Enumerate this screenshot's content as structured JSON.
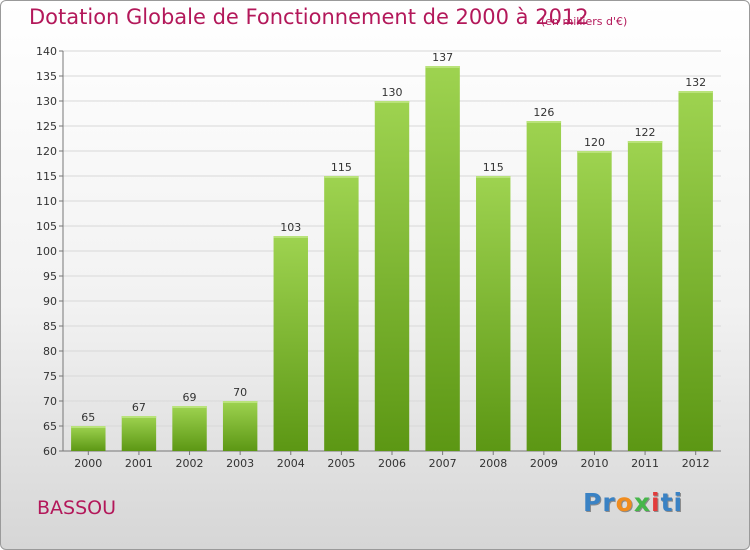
{
  "chart_data": {
    "type": "bar",
    "title": "Dotation Globale de Fonctionnement de 2000 à 2012",
    "subtitle": "(en milliers d'€)",
    "categories": [
      "2000",
      "2001",
      "2002",
      "2003",
      "2004",
      "2005",
      "2006",
      "2007",
      "2008",
      "2009",
      "2010",
      "2011",
      "2012"
    ],
    "values": [
      65,
      67,
      69,
      70,
      103,
      115,
      130,
      137,
      115,
      126,
      120,
      122,
      132
    ],
    "xlabel": "",
    "ylabel": "",
    "ylim": [
      60,
      140
    ],
    "yticks": [
      60,
      65,
      70,
      75,
      80,
      85,
      90,
      95,
      100,
      105,
      110,
      115,
      120,
      125,
      130,
      135,
      140
    ],
    "grid": true,
    "legend": "none",
    "bar_color_top": "#9ed350",
    "bar_color_bottom": "#5c9714"
  },
  "commune": "BASSOU",
  "logo": {
    "letters": [
      "P",
      "r",
      "o",
      "x",
      "i",
      "t",
      "i"
    ],
    "colors": [
      "#3a82c4",
      "#3a82c4",
      "#f08c1e",
      "#46b64a",
      "#e23c3c",
      "#3a82c4",
      "#3a82c4"
    ]
  }
}
